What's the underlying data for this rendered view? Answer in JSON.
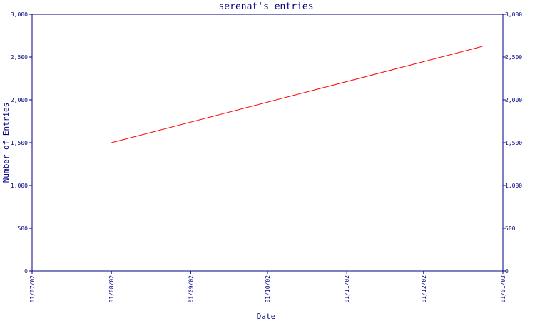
{
  "chart_data": {
    "type": "line",
    "title": "serenat's entries",
    "xlabel": "Date",
    "ylabel": "Number of Entries",
    "x_tick_labels": [
      "01/07/02",
      "01/08/02",
      "01/09/02",
      "01/10/02",
      "01/11/02",
      "01/12/02",
      "01/01/03"
    ],
    "y_tick_labels": [
      "0",
      "500",
      "1,000",
      "1,500",
      "2,000",
      "2,500",
      "3,000"
    ],
    "y_ticks": [
      0,
      500,
      1000,
      1500,
      2000,
      2500,
      3000
    ],
    "xlim": [
      "2002-07-01",
      "2003-01-01"
    ],
    "ylim": [
      0,
      3000
    ],
    "grid": false,
    "series": [
      {
        "color": "#ff0000",
        "points": [
          {
            "x": "2002-08-01",
            "y": 1500
          },
          {
            "x": "2002-12-24",
            "y": 2625
          }
        ]
      }
    ],
    "axis_color": "#000080"
  }
}
